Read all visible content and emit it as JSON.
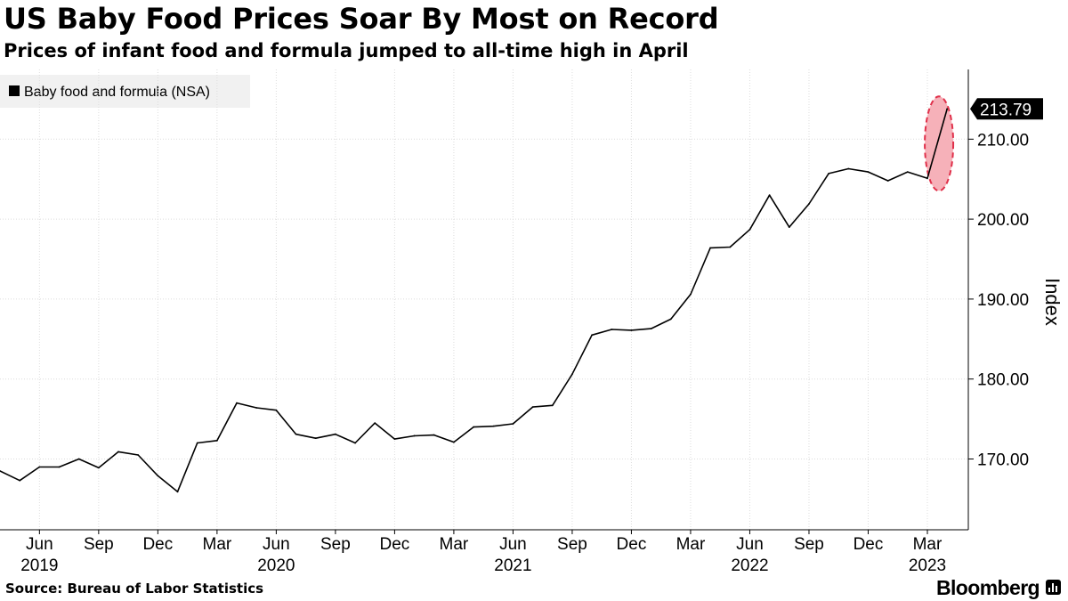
{
  "header": {
    "title": "US Baby Food Prices Soar By Most on Record",
    "subtitle": "Prices of infant food and formula jumped to all-time high in April"
  },
  "footer": {
    "source": "Source: Bureau of Labor Statistics",
    "brand": "Bloomberg"
  },
  "chart_data": {
    "type": "line",
    "ylabel": "Index",
    "ylim": [
      163,
      220
    ],
    "y_ticks": [
      170,
      180,
      190,
      200,
      210
    ],
    "y_tick_labels": [
      "170.00",
      "180.00",
      "190.00",
      "200.00",
      "210.00"
    ],
    "x_ticks": [
      {
        "date": "2019-06",
        "label": "Jun",
        "year": "2019"
      },
      {
        "date": "2019-09",
        "label": "Sep"
      },
      {
        "date": "2019-12",
        "label": "Dec"
      },
      {
        "date": "2020-03",
        "label": "Mar"
      },
      {
        "date": "2020-06",
        "label": "Jun",
        "year": "2020"
      },
      {
        "date": "2020-09",
        "label": "Sep"
      },
      {
        "date": "2020-12",
        "label": "Dec"
      },
      {
        "date": "2021-03",
        "label": "Mar"
      },
      {
        "date": "2021-06",
        "label": "Jun",
        "year": "2021"
      },
      {
        "date": "2021-09",
        "label": "Sep"
      },
      {
        "date": "2021-12",
        "label": "Dec"
      },
      {
        "date": "2022-03",
        "label": "Mar"
      },
      {
        "date": "2022-06",
        "label": "Jun",
        "year": "2022"
      },
      {
        "date": "2022-09",
        "label": "Sep"
      },
      {
        "date": "2022-12",
        "label": "Dec"
      },
      {
        "date": "2023-03",
        "label": "Mar",
        "year": "2023"
      }
    ],
    "legend": {
      "label": "Baby food and formula (NSA)",
      "position": "top-left"
    },
    "grid": true,
    "highlight": {
      "date_start": "2023-03",
      "date_end": "2023-04",
      "color": "#f4a3ad",
      "stroke": "#e0304a"
    },
    "last_value_label": "213.79",
    "series": [
      {
        "name": "Baby food and formula (NSA)",
        "color": "#000000",
        "x": [
          "2019-04",
          "2019-05",
          "2019-06",
          "2019-07",
          "2019-08",
          "2019-09",
          "2019-10",
          "2019-11",
          "2019-12",
          "2020-01",
          "2020-02",
          "2020-03",
          "2020-04",
          "2020-05",
          "2020-06",
          "2020-07",
          "2020-08",
          "2020-09",
          "2020-10",
          "2020-11",
          "2020-12",
          "2021-01",
          "2021-02",
          "2021-03",
          "2021-04",
          "2021-05",
          "2021-06",
          "2021-07",
          "2021-08",
          "2021-09",
          "2021-10",
          "2021-11",
          "2021-12",
          "2022-01",
          "2022-02",
          "2022-03",
          "2022-04",
          "2022-05",
          "2022-06",
          "2022-07",
          "2022-08",
          "2022-09",
          "2022-10",
          "2022-11",
          "2022-12",
          "2023-01",
          "2023-02",
          "2023-03",
          "2023-04"
        ],
        "values": [
          168.5,
          167.3,
          169.0,
          169.0,
          170.0,
          168.9,
          170.9,
          170.5,
          167.9,
          165.9,
          172.0,
          172.3,
          177.0,
          176.4,
          176.1,
          173.1,
          172.6,
          173.1,
          172.0,
          174.5,
          172.5,
          172.9,
          173.0,
          172.1,
          174.0,
          174.1,
          174.4,
          176.5,
          176.7,
          180.6,
          185.5,
          186.2,
          186.1,
          186.3,
          187.5,
          190.6,
          196.4,
          196.5,
          198.7,
          203.0,
          199.0,
          201.9,
          205.7,
          206.3,
          205.9,
          204.8,
          205.9,
          205.1,
          213.79
        ]
      }
    ]
  }
}
